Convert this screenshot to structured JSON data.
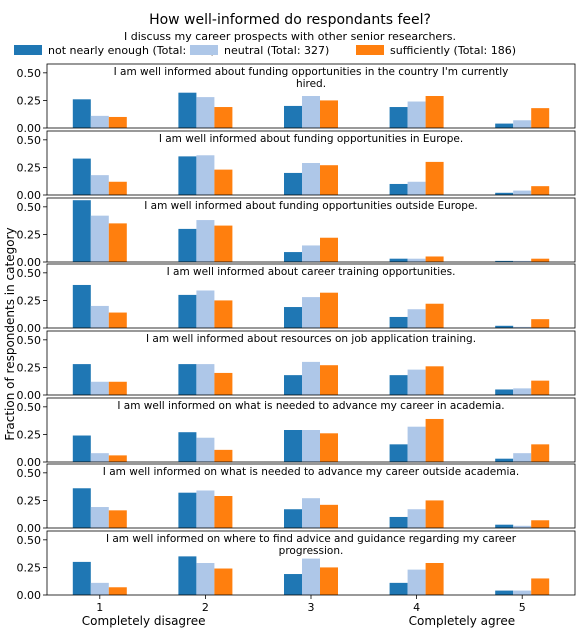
{
  "chart_data": {
    "type": "bar",
    "title": "How well-informed do respondants feel?",
    "legend_title": "I discuss my career prospects with other senior researchers.",
    "legend_position": "top",
    "ylabel": "Fraction of respondents in category",
    "ylim": [
      0,
      0.58
    ],
    "yticks": [
      "0.00",
      "0.25",
      "0.50"
    ],
    "categories": [
      "1",
      "2",
      "3",
      "4",
      "5"
    ],
    "xlabel_left": "Completely disagree",
    "xlabel_right": "Completely agree",
    "colors": [
      "#1f77b4",
      "#aec7e8",
      "#ff7f0e"
    ],
    "series_names": [
      "not nearly enough (Total: 246)",
      "neutral (Total: 327)",
      "sufficiently (Total: 186)"
    ],
    "panels": [
      {
        "title": [
          "I am well informed about funding opportunities in the country I'm currently",
          "hired."
        ],
        "series": [
          [
            0.26,
            0.32,
            0.2,
            0.19,
            0.04
          ],
          [
            0.11,
            0.28,
            0.29,
            0.24,
            0.07
          ],
          [
            0.1,
            0.19,
            0.25,
            0.29,
            0.18
          ]
        ]
      },
      {
        "title": [
          "I am well informed about funding opportunities in Europe."
        ],
        "series": [
          [
            0.33,
            0.35,
            0.2,
            0.1,
            0.02
          ],
          [
            0.18,
            0.36,
            0.29,
            0.12,
            0.04
          ],
          [
            0.12,
            0.23,
            0.27,
            0.3,
            0.08
          ]
        ]
      },
      {
        "title": [
          "I am well informed about funding opportunities outside Europe."
        ],
        "series": [
          [
            0.56,
            0.3,
            0.09,
            0.03,
            0.01
          ],
          [
            0.42,
            0.38,
            0.15,
            0.03,
            0.01
          ],
          [
            0.35,
            0.33,
            0.22,
            0.05,
            0.03
          ]
        ]
      },
      {
        "title": [
          "I am well informed about career training opportunities."
        ],
        "series": [
          [
            0.39,
            0.3,
            0.19,
            0.1,
            0.02
          ],
          [
            0.2,
            0.34,
            0.28,
            0.17,
            0.01
          ],
          [
            0.14,
            0.25,
            0.32,
            0.22,
            0.08
          ]
        ]
      },
      {
        "title": [
          "I am well informed about resources on job application training."
        ],
        "series": [
          [
            0.28,
            0.28,
            0.18,
            0.18,
            0.05
          ],
          [
            0.12,
            0.28,
            0.3,
            0.23,
            0.06
          ],
          [
            0.12,
            0.2,
            0.27,
            0.26,
            0.13
          ]
        ]
      },
      {
        "title": [
          "I am well informed on what is needed to advance my career in academia."
        ],
        "series": [
          [
            0.24,
            0.27,
            0.29,
            0.16,
            0.03
          ],
          [
            0.08,
            0.22,
            0.29,
            0.32,
            0.08
          ],
          [
            0.06,
            0.11,
            0.26,
            0.39,
            0.16
          ]
        ]
      },
      {
        "title": [
          "I am well informed on what is needed to advance my career outside academia."
        ],
        "series": [
          [
            0.36,
            0.32,
            0.17,
            0.1,
            0.03
          ],
          [
            0.19,
            0.34,
            0.27,
            0.17,
            0.02
          ],
          [
            0.16,
            0.29,
            0.21,
            0.25,
            0.07
          ]
        ]
      },
      {
        "title": [
          "I am well informed on where to find advice and guidance regarding my career",
          "progression."
        ],
        "series": [
          [
            0.3,
            0.35,
            0.19,
            0.11,
            0.04
          ],
          [
            0.11,
            0.29,
            0.33,
            0.23,
            0.04
          ],
          [
            0.07,
            0.24,
            0.25,
            0.29,
            0.15
          ]
        ]
      }
    ]
  }
}
